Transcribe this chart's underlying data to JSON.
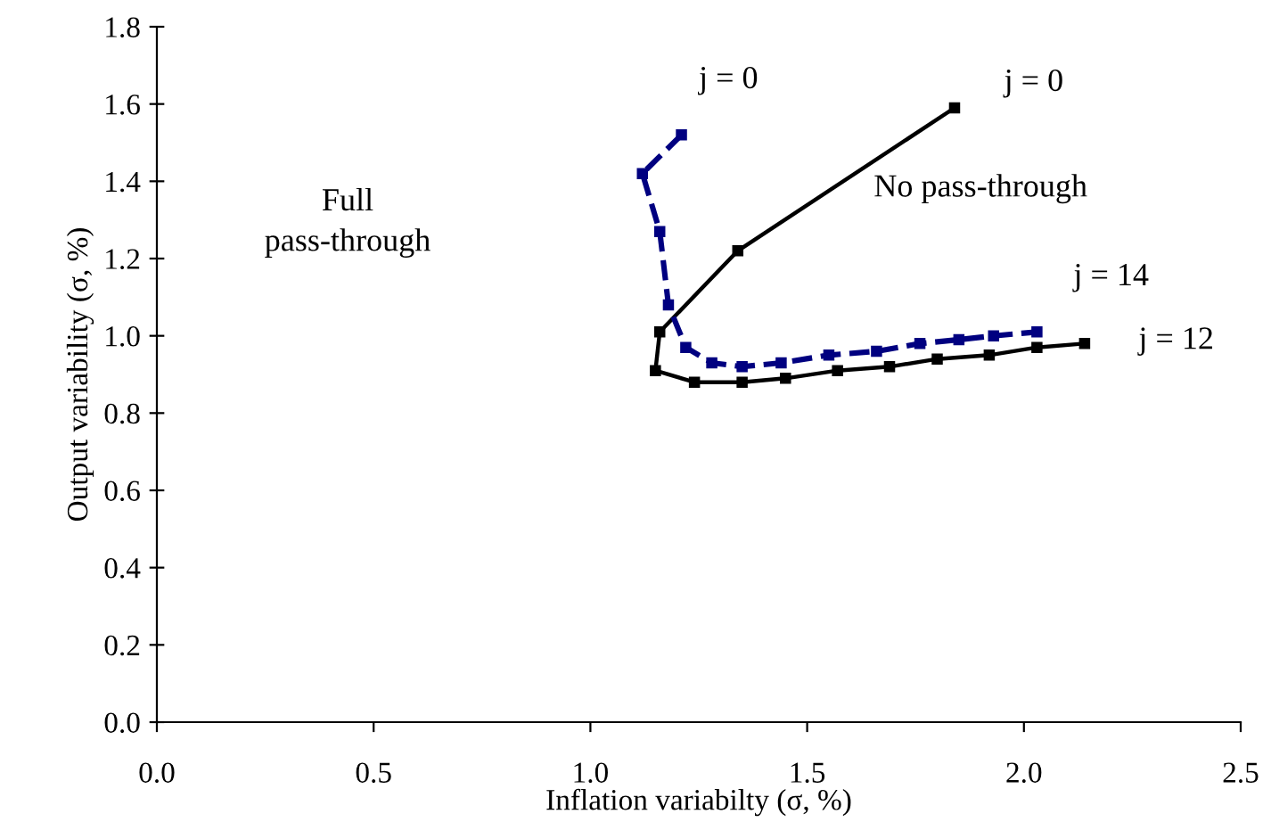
{
  "chart_data": {
    "type": "line",
    "xlabel": "Inflation variabilty (σ, %)",
    "ylabel": "Output variability (σ, %)",
    "xlim": [
      0,
      2.5
    ],
    "ylim": [
      0,
      1.8
    ],
    "xticks": [
      {
        "value": 0,
        "label": "0.0"
      },
      {
        "value": 0.5,
        "label": "0.5"
      },
      {
        "value": 1,
        "label": "1.0"
      },
      {
        "value": 1.5,
        "label": "1.5"
      },
      {
        "value": 2,
        "label": "2.0"
      },
      {
        "value": 2.5,
        "label": "2.5"
      }
    ],
    "yticks": [
      {
        "value": 0,
        "label": "0.0"
      },
      {
        "value": 0.2,
        "label": "0.2"
      },
      {
        "value": 0.4,
        "label": "0.4"
      },
      {
        "value": 0.6,
        "label": "0.6"
      },
      {
        "value": 0.8,
        "label": "0.8"
      },
      {
        "value": 1,
        "label": "1.0"
      },
      {
        "value": 1.2,
        "label": "1.2"
      },
      {
        "value": 1.4,
        "label": "1.4"
      },
      {
        "value": 1.6,
        "label": "1.6"
      },
      {
        "value": 1.8,
        "label": "1.8"
      }
    ],
    "grid": false,
    "legend": false,
    "marker": "square",
    "series": [
      {
        "color": "#000000",
        "line_style": "solid",
        "x": [
          1.84,
          1.34,
          1.16,
          1.15,
          1.24,
          1.35,
          1.45,
          1.57,
          1.69,
          1.8,
          1.92,
          2.03,
          2.14
        ],
        "values": [
          1.59,
          1.22,
          1.01,
          0.91,
          0.88,
          0.88,
          0.89,
          0.91,
          0.92,
          0.94,
          0.95,
          0.97,
          0.98
        ]
      },
      {
        "color": "#000080",
        "line_style": "dashed",
        "x": [
          1.21,
          1.12,
          1.16,
          1.18,
          1.22,
          1.28,
          1.35,
          1.44,
          1.55,
          1.66,
          1.76,
          1.85,
          1.93,
          2.03
        ],
        "values": [
          1.52,
          1.42,
          1.27,
          1.08,
          0.97,
          0.93,
          0.92,
          0.93,
          0.95,
          0.96,
          0.98,
          0.99,
          1.0,
          1.01
        ]
      }
    ],
    "annotations": [
      "Full\npass-through",
      "No pass-through",
      {
        "text": "j = 0",
        "x": 1.21,
        "y": 1.52
      },
      {
        "text": "j = 0",
        "x": 1.84,
        "y": 1.59
      },
      {
        "text": "j = 14",
        "x": 2.03,
        "y": 1.01
      },
      {
        "text": "j = 12",
        "x": 2.14,
        "y": 0.98
      }
    ]
  }
}
